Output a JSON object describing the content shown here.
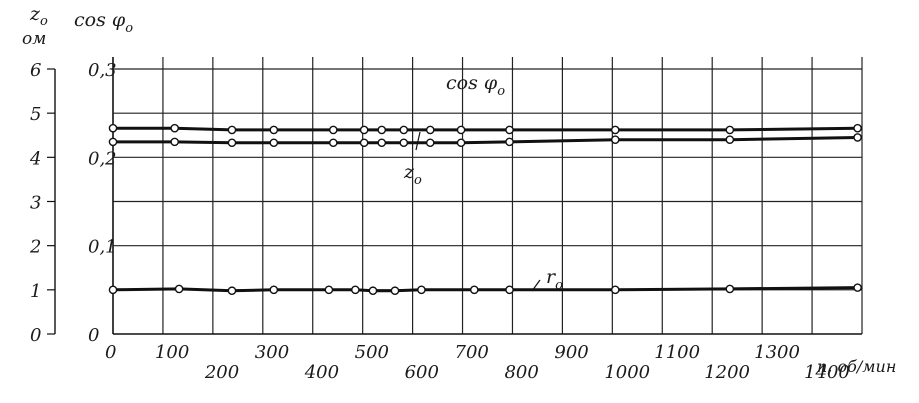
{
  "chart_data": {
    "type": "line",
    "axes": {
      "left_outer": {
        "label_line1": "z",
        "label_line1_sub": "o",
        "label_line2": "ом",
        "ticks": [
          "0",
          "1",
          "2",
          "3",
          "4",
          "5",
          "6"
        ],
        "ylim": [
          0,
          6
        ]
      },
      "left_inner": {
        "label": "cos φ",
        "label_sub": "o",
        "ticks": [
          "0",
          "0,1",
          "0,2",
          "0,3"
        ],
        "ylim": [
          0,
          0.3
        ]
      },
      "x": {
        "ticks": [
          "0",
          "100",
          "200",
          "300",
          "400",
          "500",
          "600",
          "700",
          "800",
          "900",
          "1000",
          "1100",
          "1200",
          "1300",
          "1400"
        ],
        "label": "n, об/мин",
        "xlim": [
          0,
          1700
        ]
      }
    },
    "grid": true,
    "series": [
      {
        "name": "cos φ",
        "name_sub": "o",
        "axis": "left_inner",
        "x": [
          0,
          140,
          270,
          365,
          500,
          570,
          610,
          660,
          720,
          790,
          900,
          1140,
          1400,
          1690
        ],
        "y": [
          0.233,
          0.233,
          0.231,
          0.231,
          0.231,
          0.231,
          0.231,
          0.231,
          0.231,
          0.231,
          0.231,
          0.231,
          0.231,
          0.233
        ]
      },
      {
        "name": "z",
        "name_sub": "o",
        "axis": "left_outer",
        "x": [
          0,
          140,
          270,
          365,
          500,
          570,
          610,
          660,
          720,
          790,
          900,
          1140,
          1400,
          1690
        ],
        "y": [
          4.35,
          4.35,
          4.33,
          4.33,
          4.33,
          4.33,
          4.33,
          4.33,
          4.33,
          4.33,
          4.35,
          4.4,
          4.4,
          4.45
        ]
      },
      {
        "name": "r",
        "name_sub": "o",
        "axis": "left_outer",
        "x": [
          0,
          150,
          270,
          365,
          490,
          550,
          590,
          640,
          700,
          820,
          900,
          1140,
          1400,
          1690
        ],
        "y": [
          1.0,
          1.02,
          0.98,
          1.0,
          1.0,
          1.0,
          0.98,
          0.98,
          1.0,
          1.0,
          1.0,
          1.0,
          1.02,
          1.05
        ]
      }
    ]
  }
}
